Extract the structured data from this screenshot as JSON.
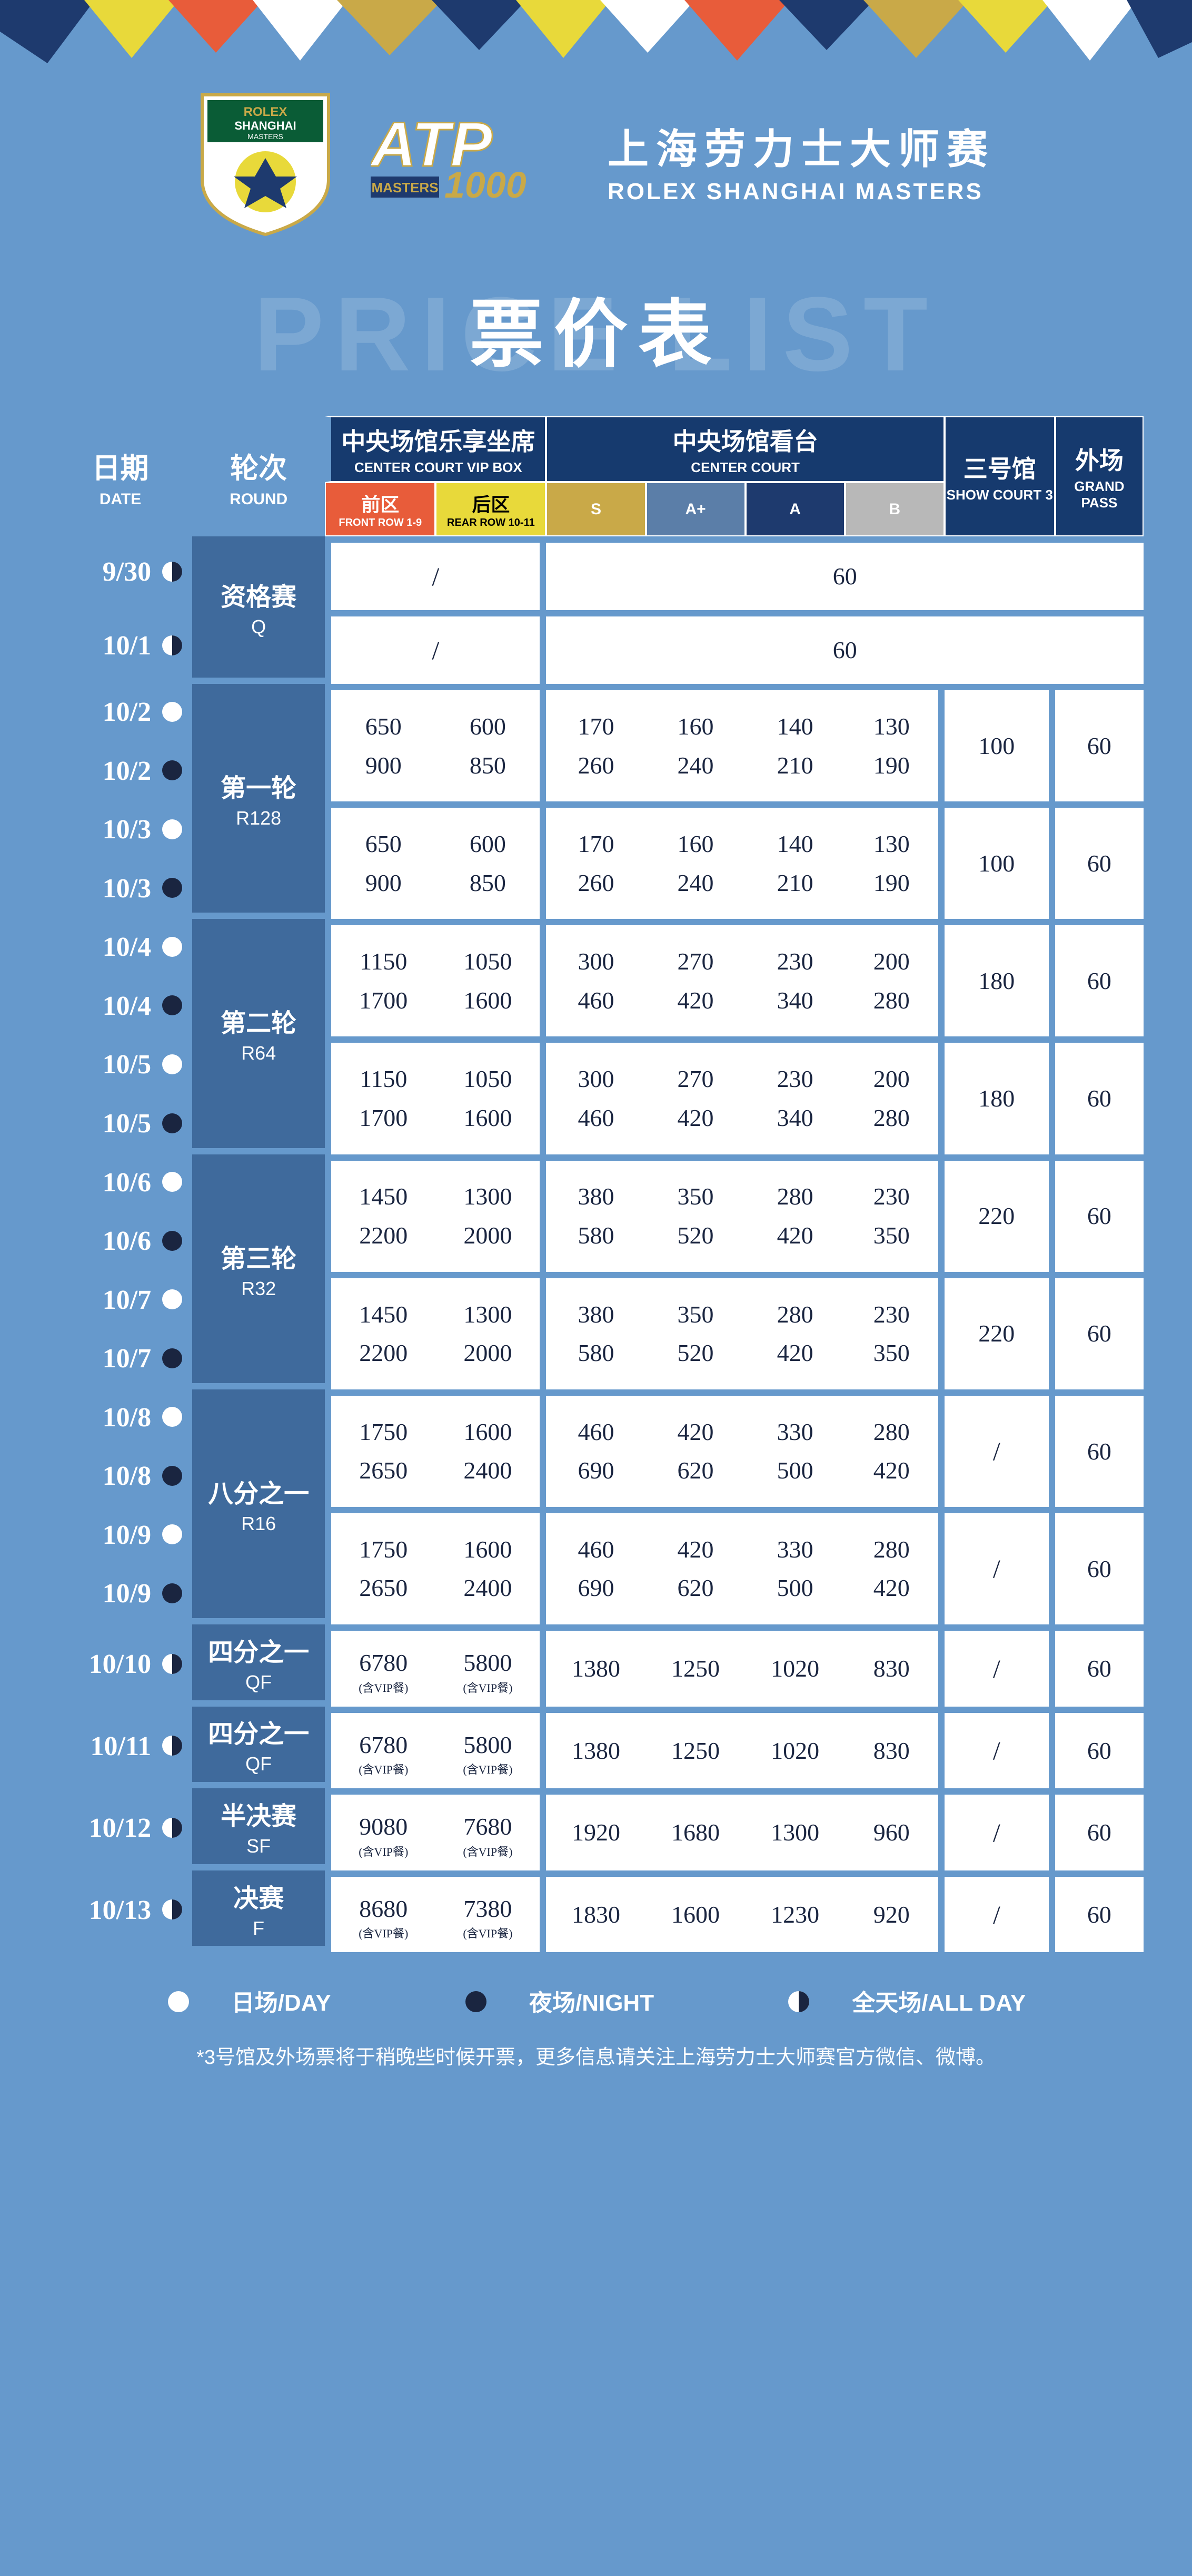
{
  "colors": {
    "bg": "#6699cc",
    "darkBlue": "#163a6e",
    "roundBg": "#3f6a9c",
    "white": "#ffffff",
    "front": "#e85c3a",
    "rear": "#e8d93a",
    "s": "#c9a948",
    "aplus": "#5b7ea8",
    "a": "#1e3a6e",
    "b": "#b8b8b8",
    "ink": "#1a2540"
  },
  "eventTitle": {
    "cn": "上海劳力士大师赛",
    "en": "ROLEX SHANGHAI MASTERS"
  },
  "priceTitle": {
    "bg": "PRICE LIST",
    "fg": "票价表"
  },
  "headers": {
    "date": {
      "cn": "日期",
      "en": "DATE"
    },
    "round": {
      "cn": "轮次",
      "en": "ROUND"
    },
    "vip": {
      "cn": "中央场馆乐享坐席",
      "en": "CENTER COURT VIP BOX"
    },
    "cc": {
      "cn": "中央场馆看台",
      "en": "CENTER COURT"
    },
    "sc3": {
      "cn": "三号馆",
      "en": "SHOW COURT 3"
    },
    "gp": {
      "cn": "外场",
      "en": "GRAND PASS"
    },
    "front": {
      "cn": "前区",
      "en": "FRONT ROW 1-9"
    },
    "rear": {
      "cn": "后区",
      "en": "REAR ROW 10-11"
    },
    "s": "S",
    "aplus": "A+",
    "a": "A",
    "b": "B"
  },
  "legend": {
    "day": "日场/DAY",
    "night": "夜场/NIGHT",
    "allday": "全天场/ALL DAY"
  },
  "footnote": "*3号馆及外场票将于稍晚些时候开票，更多信息请关注上海劳力士大师赛官方微信、微博。",
  "vipNote": "(含VIP餐)",
  "groups": [
    {
      "round": {
        "cn": "资格赛",
        "en": "Q"
      },
      "blocks": [
        {
          "dates": [
            {
              "d": "9/30",
              "t": "allday"
            }
          ],
          "vip": "/",
          "cc": "60",
          "sc3": null,
          "gp": null,
          "merged": true
        },
        {
          "dates": [
            {
              "d": "10/1",
              "t": "allday"
            }
          ],
          "vip": "/",
          "cc": "60",
          "sc3": null,
          "gp": null,
          "merged": true
        }
      ]
    },
    {
      "round": {
        "cn": "第一轮",
        "en": "R128"
      },
      "blocks": [
        {
          "dates": [
            {
              "d": "10/2",
              "t": "day"
            },
            {
              "d": "10/2",
              "t": "night"
            }
          ],
          "front": [
            "650",
            "900"
          ],
          "rear": [
            "600",
            "850"
          ],
          "s": [
            "170",
            "260"
          ],
          "ap": [
            "160",
            "240"
          ],
          "a": [
            "140",
            "210"
          ],
          "b": [
            "130",
            "190"
          ],
          "sc3": "100",
          "gp": "60"
        },
        {
          "dates": [
            {
              "d": "10/3",
              "t": "day"
            },
            {
              "d": "10/3",
              "t": "night"
            }
          ],
          "front": [
            "650",
            "900"
          ],
          "rear": [
            "600",
            "850"
          ],
          "s": [
            "170",
            "260"
          ],
          "ap": [
            "160",
            "240"
          ],
          "a": [
            "140",
            "210"
          ],
          "b": [
            "130",
            "190"
          ],
          "sc3": "100",
          "gp": "60"
        }
      ]
    },
    {
      "round": {
        "cn": "第二轮",
        "en": "R64"
      },
      "blocks": [
        {
          "dates": [
            {
              "d": "10/4",
              "t": "day"
            },
            {
              "d": "10/4",
              "t": "night"
            }
          ],
          "front": [
            "1150",
            "1700"
          ],
          "rear": [
            "1050",
            "1600"
          ],
          "s": [
            "300",
            "460"
          ],
          "ap": [
            "270",
            "420"
          ],
          "a": [
            "230",
            "340"
          ],
          "b": [
            "200",
            "280"
          ],
          "sc3": "180",
          "gp": "60"
        },
        {
          "dates": [
            {
              "d": "10/5",
              "t": "day"
            },
            {
              "d": "10/5",
              "t": "night"
            }
          ],
          "front": [
            "1150",
            "1700"
          ],
          "rear": [
            "1050",
            "1600"
          ],
          "s": [
            "300",
            "460"
          ],
          "ap": [
            "270",
            "420"
          ],
          "a": [
            "230",
            "340"
          ],
          "b": [
            "200",
            "280"
          ],
          "sc3": "180",
          "gp": "60"
        }
      ]
    },
    {
      "round": {
        "cn": "第三轮",
        "en": "R32"
      },
      "blocks": [
        {
          "dates": [
            {
              "d": "10/6",
              "t": "day"
            },
            {
              "d": "10/6",
              "t": "night"
            }
          ],
          "front": [
            "1450",
            "2200"
          ],
          "rear": [
            "1300",
            "2000"
          ],
          "s": [
            "380",
            "580"
          ],
          "ap": [
            "350",
            "520"
          ],
          "a": [
            "280",
            "420"
          ],
          "b": [
            "230",
            "350"
          ],
          "sc3": "220",
          "gp": "60"
        },
        {
          "dates": [
            {
              "d": "10/7",
              "t": "day"
            },
            {
              "d": "10/7",
              "t": "night"
            }
          ],
          "front": [
            "1450",
            "2200"
          ],
          "rear": [
            "1300",
            "2000"
          ],
          "s": [
            "380",
            "580"
          ],
          "ap": [
            "350",
            "520"
          ],
          "a": [
            "280",
            "420"
          ],
          "b": [
            "230",
            "350"
          ],
          "sc3": "220",
          "gp": "60"
        }
      ]
    },
    {
      "round": {
        "cn": "八分之一",
        "en": "R16"
      },
      "blocks": [
        {
          "dates": [
            {
              "d": "10/8",
              "t": "day"
            },
            {
              "d": "10/8",
              "t": "night"
            }
          ],
          "front": [
            "1750",
            "2650"
          ],
          "rear": [
            "1600",
            "2400"
          ],
          "s": [
            "460",
            "690"
          ],
          "ap": [
            "420",
            "620"
          ],
          "a": [
            "330",
            "500"
          ],
          "b": [
            "280",
            "420"
          ],
          "sc3": "/",
          "gp": "60"
        },
        {
          "dates": [
            {
              "d": "10/9",
              "t": "day"
            },
            {
              "d": "10/9",
              "t": "night"
            }
          ],
          "front": [
            "1750",
            "2650"
          ],
          "rear": [
            "1600",
            "2400"
          ],
          "s": [
            "460",
            "690"
          ],
          "ap": [
            "420",
            "620"
          ],
          "a": [
            "330",
            "500"
          ],
          "b": [
            "280",
            "420"
          ],
          "sc3": "/",
          "gp": "60"
        }
      ]
    },
    {
      "round": {
        "cn": "四分之一",
        "en": "QF"
      },
      "single": true,
      "blocks": [
        {
          "dates": [
            {
              "d": "10/10",
              "t": "allday"
            }
          ],
          "front": [
            "6780"
          ],
          "rear": [
            "5800"
          ],
          "s": [
            "1380"
          ],
          "ap": [
            "1250"
          ],
          "a": [
            "1020"
          ],
          "b": [
            "830"
          ],
          "sc3": "/",
          "gp": "60",
          "vipnote": true
        }
      ]
    },
    {
      "round": {
        "cn": "四分之一",
        "en": "QF"
      },
      "single": true,
      "blocks": [
        {
          "dates": [
            {
              "d": "10/11",
              "t": "allday"
            }
          ],
          "front": [
            "6780"
          ],
          "rear": [
            "5800"
          ],
          "s": [
            "1380"
          ],
          "ap": [
            "1250"
          ],
          "a": [
            "1020"
          ],
          "b": [
            "830"
          ],
          "sc3": "/",
          "gp": "60",
          "vipnote": true
        }
      ]
    },
    {
      "round": {
        "cn": "半决赛",
        "en": "SF"
      },
      "single": true,
      "blocks": [
        {
          "dates": [
            {
              "d": "10/12",
              "t": "allday"
            }
          ],
          "front": [
            "9080"
          ],
          "rear": [
            "7680"
          ],
          "s": [
            "1920"
          ],
          "ap": [
            "1680"
          ],
          "a": [
            "1300"
          ],
          "b": [
            "960"
          ],
          "sc3": "/",
          "gp": "60",
          "vipnote": true
        }
      ]
    },
    {
      "round": {
        "cn": "决赛",
        "en": "F"
      },
      "single": true,
      "blocks": [
        {
          "dates": [
            {
              "d": "10/13",
              "t": "allday"
            }
          ],
          "front": [
            "8680"
          ],
          "rear": [
            "7380"
          ],
          "s": [
            "1830"
          ],
          "ap": [
            "1600"
          ],
          "a": [
            "1230"
          ],
          "b": [
            "920"
          ],
          "sc3": "/",
          "gp": "60",
          "vipnote": true
        }
      ]
    }
  ]
}
